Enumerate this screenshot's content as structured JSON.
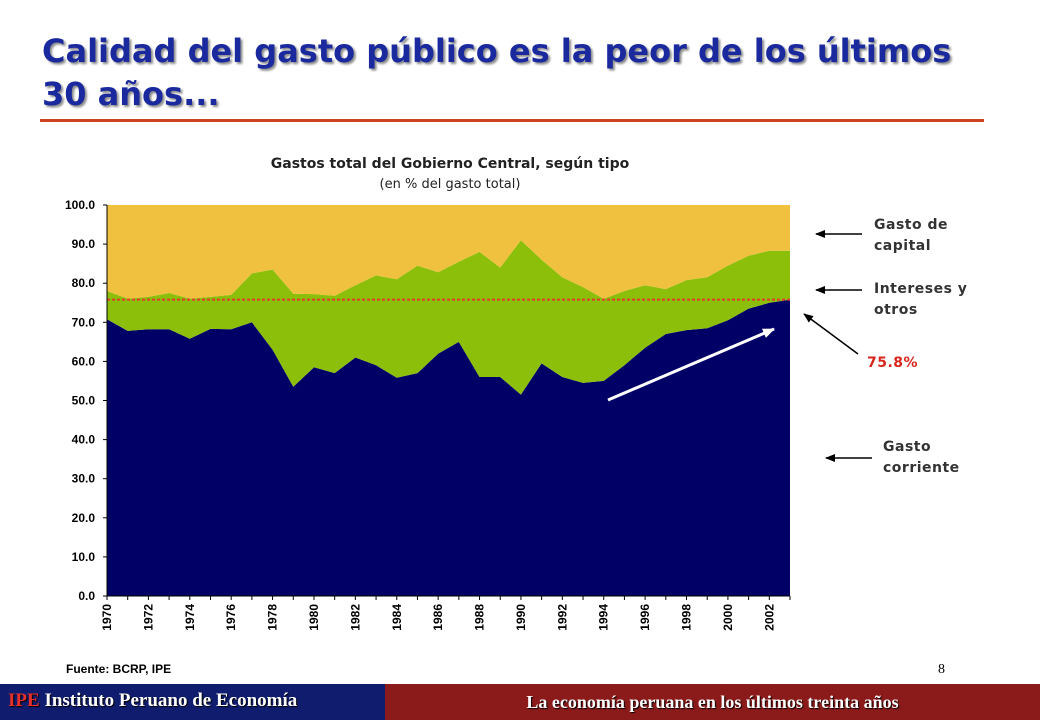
{
  "slide": {
    "title": "Calidad del gasto público es la peor de los últimos 30 años...",
    "page_number": "8",
    "source": "Fuente: BCRP, IPE"
  },
  "footer": {
    "org_acronym": "IPE",
    "org_name": "Instituto Peruano de Economía",
    "tagline": "La economía peruana en los últimos treinta años"
  },
  "legend": {
    "capital": "Gasto de capital",
    "intereses": "Intereses y otros",
    "corriente": "Gasto corriente"
  },
  "annotation": "75.8%",
  "colors": {
    "title": "#1a2a9e",
    "corriente": "#000066",
    "intereses": "#8cbf0a",
    "capital": "#efc13f",
    "reference_line": "#e43a2a",
    "annotation": "#d9261c"
  },
  "chart_data": {
    "type": "area",
    "stacked": true,
    "title": "Gastos total del Gobierno Central, según tipo",
    "subtitle": "(en % del gasto total)",
    "x": [
      1970,
      1971,
      1972,
      1973,
      1974,
      1975,
      1976,
      1977,
      1978,
      1979,
      1980,
      1981,
      1982,
      1983,
      1984,
      1985,
      1986,
      1987,
      1988,
      1989,
      1990,
      1991,
      1992,
      1993,
      1994,
      1995,
      1996,
      1997,
      1998,
      1999,
      2000,
      2001,
      2002,
      2003
    ],
    "x_tick_labels": [
      "1970",
      "1972",
      "1974",
      "1976",
      "1978",
      "1980",
      "1982",
      "1984",
      "1986",
      "1988",
      "1990",
      "1992",
      "1994",
      "1996",
      "1998",
      "2000",
      "2002"
    ],
    "y_tick_labels": [
      "0.0",
      "10.0",
      "20.0",
      "30.0",
      "40.0",
      "50.0",
      "60.0",
      "70.0",
      "80.0",
      "90.0",
      "100.0"
    ],
    "ylim": [
      0,
      100
    ],
    "reference_line": 75.8,
    "series": [
      {
        "name": "Gasto corriente",
        "values": [
          70.8,
          67.8,
          68.2,
          68.2,
          65.8,
          68.3,
          68.2,
          70.0,
          63.0,
          53.5,
          58.5,
          57.0,
          61.0,
          59.0,
          55.8,
          57.0,
          62.0,
          65.0,
          56.0,
          56.0,
          51.5,
          59.5,
          56.0,
          54.5,
          55.0,
          59.0,
          63.5,
          67.0,
          68.0,
          68.5,
          70.5,
          73.5,
          75.0,
          75.8
        ]
      },
      {
        "name": "Intereses y otros",
        "values": [
          7.2,
          8.2,
          8.3,
          9.3,
          10.2,
          8.2,
          8.8,
          12.5,
          20.5,
          23.8,
          18.7,
          19.8,
          18.5,
          23.0,
          25.2,
          27.5,
          20.8,
          20.5,
          32.0,
          28.0,
          39.5,
          26.5,
          25.5,
          24.5,
          21.0,
          19.0,
          16.0,
          11.5,
          12.8,
          13.0,
          14.0,
          13.5,
          13.3,
          12.5
        ]
      },
      {
        "name": "Gasto de capital",
        "values": [
          22.0,
          24.0,
          23.5,
          22.5,
          24.0,
          23.5,
          23.0,
          17.5,
          16.5,
          22.7,
          22.8,
          23.2,
          20.5,
          18.0,
          19.0,
          15.5,
          17.2,
          14.5,
          12.0,
          16.0,
          9.0,
          14.0,
          18.5,
          21.0,
          24.0,
          22.0,
          20.5,
          21.5,
          19.2,
          18.5,
          15.5,
          13.0,
          11.7,
          11.7
        ]
      }
    ]
  }
}
